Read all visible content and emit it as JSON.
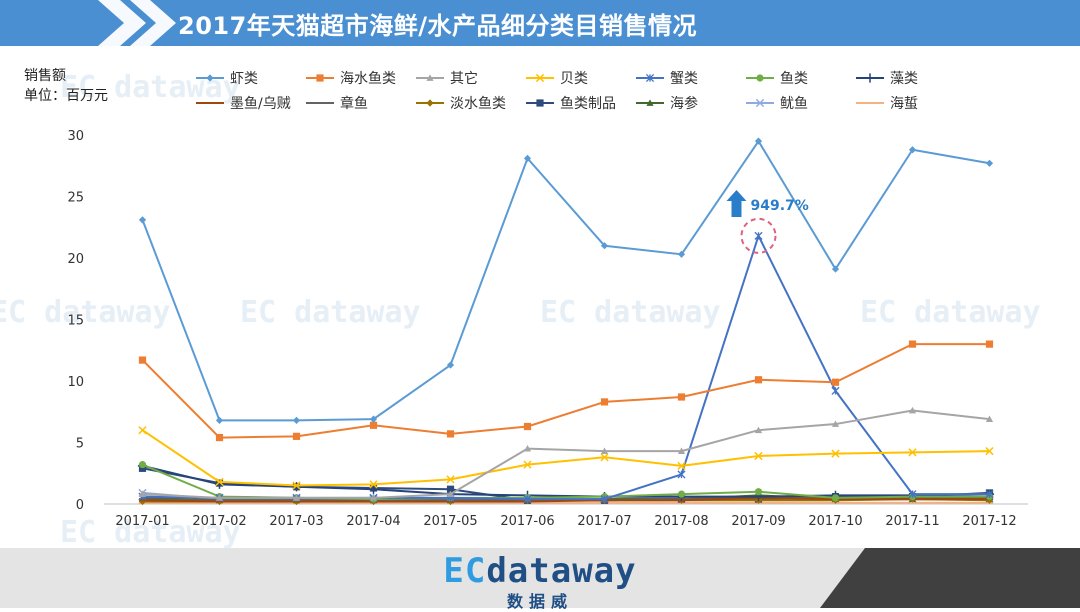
{
  "header": {
    "title": "2017年天猫超市海鲜/水产品细分类目销售情况"
  },
  "axis": {
    "unit_line1": "销售额",
    "unit_line2": "单位：百万元"
  },
  "brand": {
    "name_prefix": "EC",
    "name_suffix": "dataway",
    "name_cn": "数据威"
  },
  "annotation": {
    "text": "949.7%"
  },
  "colors": {
    "header": "#4a8fd2",
    "accent": "#2a7dc9",
    "highlight": "#e06080"
  },
  "chart_data": {
    "type": "line",
    "categories": [
      "2017-01",
      "2017-02",
      "2017-03",
      "2017-04",
      "2017-05",
      "2017-06",
      "2017-07",
      "2017-08",
      "2017-09",
      "2017-10",
      "2017-11",
      "2017-12"
    ],
    "ylim": [
      0,
      30
    ],
    "yticks": [
      "0",
      "5",
      "10",
      "15",
      "20",
      "25",
      "30"
    ],
    "grid": false,
    "legend_position": "top",
    "series": [
      {
        "name": "虾类",
        "color": "#5b9bd5",
        "marker": "diamond",
        "values": [
          23.1,
          6.8,
          6.8,
          6.9,
          11.3,
          28.1,
          21.0,
          20.3,
          29.5,
          19.1,
          28.8,
          27.7
        ]
      },
      {
        "name": "海水鱼类",
        "color": "#ed7d31",
        "marker": "square",
        "values": [
          11.7,
          5.4,
          5.5,
          6.4,
          5.7,
          6.3,
          8.3,
          8.7,
          10.1,
          9.9,
          13.0,
          13.0
        ]
      },
      {
        "name": "其它",
        "color": "#a5a5a5",
        "marker": "triangle",
        "values": [
          0.8,
          0.5,
          0.5,
          0.5,
          0.8,
          4.5,
          4.3,
          4.3,
          6.0,
          6.5,
          7.6,
          6.9
        ]
      },
      {
        "name": "贝类",
        "color": "#ffc000",
        "marker": "x",
        "values": [
          6.0,
          1.8,
          1.5,
          1.6,
          2.0,
          3.2,
          3.8,
          3.1,
          3.9,
          4.1,
          4.2,
          4.3
        ]
      },
      {
        "name": "蟹类",
        "color": "#4472c4",
        "marker": "star",
        "values": [
          0.6,
          0.5,
          0.5,
          0.5,
          0.5,
          0.4,
          0.4,
          2.4,
          21.8,
          9.2,
          0.8,
          0.8
        ]
      },
      {
        "name": "鱼类",
        "color": "#70ad47",
        "marker": "circle",
        "values": [
          3.2,
          0.6,
          0.5,
          0.4,
          0.5,
          0.5,
          0.6,
          0.8,
          1.0,
          0.5,
          0.6,
          0.6
        ]
      },
      {
        "name": "藻类",
        "color": "#264478",
        "marker": "plus",
        "values": [
          3.1,
          1.6,
          1.4,
          1.2,
          0.8,
          0.7,
          0.6,
          0.6,
          0.6,
          0.7,
          0.7,
          0.8
        ]
      },
      {
        "name": "墨鱼/乌贼",
        "color": "#9e480e",
        "marker": "dash",
        "values": [
          0.3,
          0.2,
          0.2,
          0.2,
          0.2,
          0.2,
          0.3,
          0.3,
          0.5,
          0.4,
          0.4,
          0.4
        ]
      },
      {
        "name": "章鱼",
        "color": "#636363",
        "marker": "dash",
        "values": [
          0.4,
          0.3,
          0.3,
          0.3,
          0.3,
          0.3,
          0.3,
          0.4,
          0.6,
          0.5,
          0.5,
          0.5
        ]
      },
      {
        "name": "淡水鱼类",
        "color": "#997300",
        "marker": "diamond",
        "values": [
          0.2,
          0.2,
          0.2,
          0.2,
          0.2,
          0.3,
          0.3,
          0.3,
          0.3,
          0.3,
          0.4,
          0.3
        ]
      },
      {
        "name": "鱼类制品",
        "color": "#2f4b7c",
        "marker": "square",
        "values": [
          2.9,
          1.7,
          1.4,
          1.3,
          1.2,
          0.3,
          0.3,
          0.4,
          0.4,
          0.6,
          0.6,
          0.9
        ]
      },
      {
        "name": "海参",
        "color": "#43682b",
        "marker": "triangle",
        "values": [
          0.5,
          0.3,
          0.3,
          0.3,
          0.3,
          0.3,
          0.4,
          0.4,
          0.7,
          0.4,
          0.4,
          0.4
        ]
      },
      {
        "name": "鱿鱼",
        "color": "#8faadc",
        "marker": "x",
        "values": [
          0.9,
          0.4,
          0.4,
          0.4,
          0.4,
          0.4,
          0.4,
          0.5,
          0.5,
          0.4,
          0.4,
          0.4
        ]
      },
      {
        "name": "海蜇",
        "color": "#f4b183",
        "marker": "dash",
        "values": [
          0.1,
          0.1,
          0.1,
          0.1,
          0.1,
          0.1,
          0.1,
          0.1,
          0.1,
          0.1,
          0.1,
          0.1
        ]
      }
    ]
  }
}
